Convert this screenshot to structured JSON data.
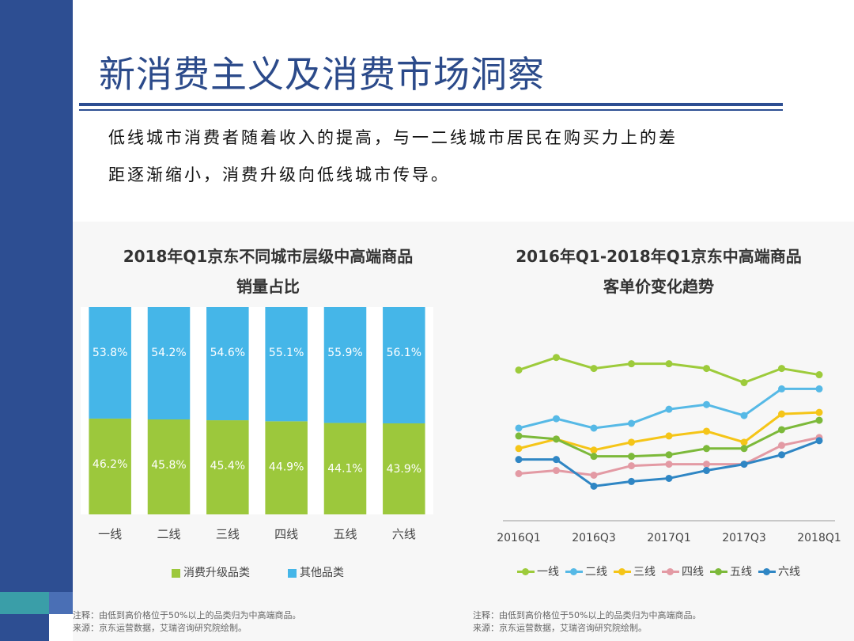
{
  "title": "新消费主义及消费市场洞察",
  "body_lines": [
    "低线城市消费者随着收入的提高，与一二线城市居民在购买力上的差",
    "距逐渐缩小，消费升级向低线城市传导。"
  ],
  "colors": {
    "sidebar": "#2d4e92",
    "title": "#2b4a8a",
    "bar_upgrade": "#9cc83c",
    "bar_other": "#45b6e8"
  },
  "chart_data": [
    {
      "type": "bar",
      "stacked": true,
      "title_lines": [
        "2018年Q1京东不同城市层级中高端商品",
        "销量占比"
      ],
      "categories": [
        "一线",
        "二线",
        "三线",
        "四线",
        "五线",
        "六线"
      ],
      "series": [
        {
          "name": "消费升级品类",
          "color": "#9cc83c",
          "values": [
            46.2,
            45.8,
            45.4,
            44.9,
            44.1,
            43.9
          ],
          "labels": [
            "46.2%",
            "45.8%",
            "45.4%",
            "44.9%",
            "44.1%",
            "43.9%"
          ]
        },
        {
          "name": "其他品类",
          "color": "#45b6e8",
          "values": [
            53.8,
            54.2,
            54.6,
            55.1,
            55.9,
            56.1
          ],
          "labels": [
            "53.8%",
            "54.2%",
            "54.6%",
            "55.1%",
            "55.9%",
            "56.1%"
          ]
        }
      ],
      "ylim": [
        0,
        100
      ],
      "legend": "bottom",
      "notes": [
        "注释：由低到高价格位于50%以上的品类归为中高端商品。",
        "来源：京东运营数据，艾瑞咨询研究院绘制。"
      ]
    },
    {
      "type": "line",
      "title_lines": [
        "2016年Q1-2018年Q1京东中高端商品",
        "客单价变化趋势"
      ],
      "x": [
        "2016Q1",
        "2016Q2",
        "2016Q3",
        "2016Q4",
        "2017Q1",
        "2017Q2",
        "2017Q3",
        "2017Q4",
        "2018Q1"
      ],
      "x_tick_labels": [
        "2016Q1",
        "2016Q3",
        "2017Q1",
        "2017Q3",
        "2018Q1"
      ],
      "y_axis_shown": false,
      "series": [
        {
          "name": "一线",
          "color": "#9dcb3b",
          "values": [
            96,
            104,
            97,
            100,
            100,
            97,
            88,
            97,
            93
          ]
        },
        {
          "name": "二线",
          "color": "#56b9e6",
          "values": [
            59,
            65,
            59,
            62,
            71,
            74,
            67,
            84,
            84
          ]
        },
        {
          "name": "三线",
          "color": "#f5c518",
          "values": [
            46,
            52,
            45,
            50,
            54,
            57,
            50,
            68,
            69
          ]
        },
        {
          "name": "四线",
          "color": "#e39aa4",
          "values": [
            30,
            32,
            29,
            35,
            36,
            36,
            36,
            48,
            53
          ]
        },
        {
          "name": "五线",
          "color": "#7cb93a",
          "values": [
            54,
            52,
            41,
            41,
            42,
            46,
            46,
            58,
            64
          ]
        },
        {
          "name": "六线",
          "color": "#2f86c4",
          "values": [
            39,
            39,
            22,
            25,
            27,
            32,
            36,
            42,
            51
          ]
        }
      ],
      "ylim": [
        0,
        120
      ],
      "legend": "bottom",
      "notes": [
        "注释：由低到高价格位于50%以上的品类归为中高端商品。",
        "来源：京东运营数据，艾瑞咨询研究院绘制。"
      ]
    }
  ]
}
